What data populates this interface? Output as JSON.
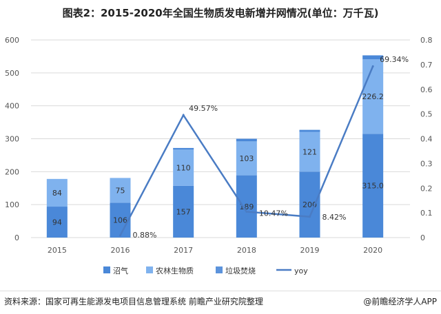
{
  "chart_data": {
    "type": "bar",
    "title": "图表2：2015-2020年全国生物质发电新增并网情况(单位：万千瓦)",
    "categories": [
      "2015",
      "2016",
      "2017",
      "2018",
      "2019",
      "2020"
    ],
    "series": [
      {
        "name": "沼气",
        "values": [
          94,
          106,
          157,
          189,
          200,
          315.0
        ],
        "labels": [
          "94",
          "106",
          "157",
          "189",
          "200",
          "315.0"
        ],
        "color": "#4a88d8"
      },
      {
        "name": "农林生物质",
        "values": [
          84,
          75,
          110,
          103,
          121,
          226.2
        ],
        "labels": [
          "84",
          "75",
          "110",
          "103",
          "121",
          "226.2"
        ],
        "color": "#7fb2ee"
      },
      {
        "name": "垃圾焚烧",
        "values": [
          0,
          0,
          5,
          8,
          6,
          12
        ],
        "color": "#4a88d8"
      }
    ],
    "line": {
      "name": "yoy",
      "axis": "right",
      "values": [
        null,
        0.0088,
        0.4957,
        0.1047,
        0.0842,
        0.6934
      ],
      "labels": [
        null,
        "0.88%",
        "49.57%",
        "10.47%",
        "8.42%",
        "69.34%"
      ],
      "color": "#4a7cc4"
    },
    "ylim": [
      0,
      600
    ],
    "yticks": [
      "0",
      "100",
      "200",
      "300",
      "400",
      "500",
      "600"
    ],
    "y2lim": [
      0,
      0.8
    ],
    "y2ticks": [
      "0",
      "0.1",
      "0.2",
      "0.3",
      "0.4",
      "0.5",
      "0.6",
      "0.7",
      "0.8"
    ],
    "legend": "bottom",
    "grid": true
  },
  "footer": {
    "source": "资料来源：国家可再生能源发电项目信息管理系统 前瞻产业研究院整理",
    "brand": "@前瞻经济学人APP"
  }
}
